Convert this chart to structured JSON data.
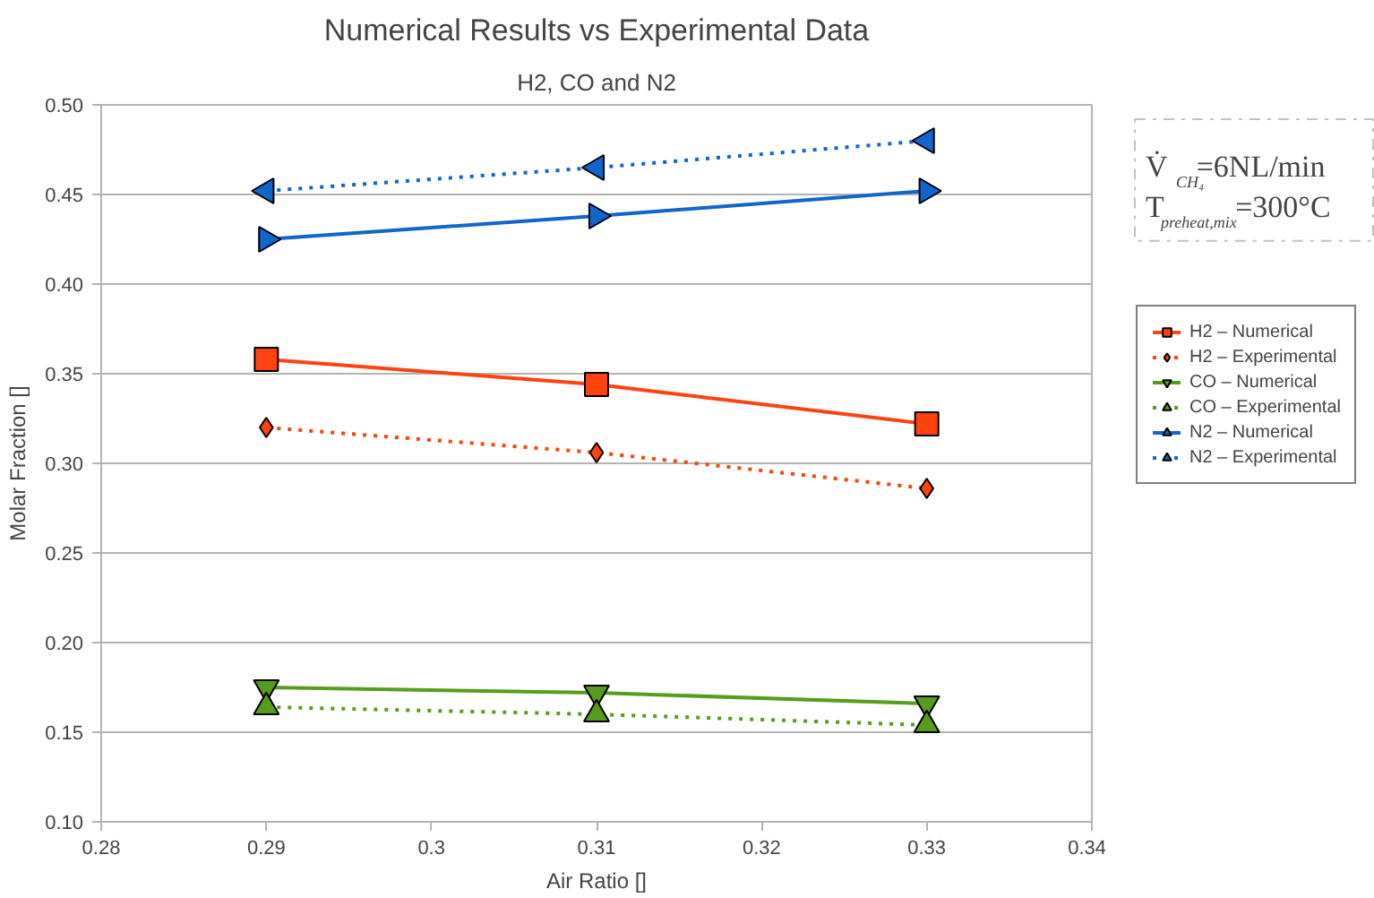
{
  "chart_data": {
    "type": "line",
    "title": "Numerical Results vs Experimental Data",
    "subtitle": "H2, CO and N2",
    "xlabel": "Air Ratio []",
    "ylabel": "Molar Fraction []",
    "x": [
      0.29,
      0.31,
      0.33
    ],
    "series": [
      {
        "name": "H2 – Numerical",
        "color": "#ff420e",
        "values": [
          0.358,
          0.344,
          0.322
        ],
        "marker": "square",
        "line_style": "solid"
      },
      {
        "name": "H2 – Experimental",
        "color": "#ff420e",
        "values": [
          0.32,
          0.306,
          0.286
        ],
        "marker": "diamond",
        "line_style": "dotted"
      },
      {
        "name": "CO – Numerical",
        "color": "#579d1c",
        "values": [
          0.175,
          0.172,
          0.166
        ],
        "marker": "triangle-down",
        "line_style": "solid"
      },
      {
        "name": "CO – Experimental",
        "color": "#579d1c",
        "values": [
          0.164,
          0.16,
          0.154
        ],
        "marker": "triangle",
        "line_style": "dotted"
      },
      {
        "name": "N2 – Numerical",
        "color": "#1166cc",
        "values": [
          0.425,
          0.438,
          0.452
        ],
        "marker": "triangle-right",
        "line_style": "solid"
      },
      {
        "name": "N2 – Experimental",
        "color": "#1166cc",
        "values": [
          0.452,
          0.465,
          0.48
        ],
        "marker": "triangle-left",
        "line_style": "dotted"
      }
    ],
    "xlim": [
      0.28,
      0.34
    ],
    "xticks": [
      0.28,
      0.29,
      {
        "value": 0.3,
        "label": "0.3"
      },
      0.31,
      0.32,
      0.33,
      0.34
    ],
    "ylim": [
      0.1,
      0.5
    ],
    "yticks": [
      {
        "value": 0.1,
        "label": "0.10"
      },
      0.15,
      {
        "value": 0.2,
        "label": "0.20"
      },
      0.25,
      {
        "value": 0.3,
        "label": "0.30"
      },
      0.35,
      {
        "value": 0.4,
        "label": "0.40"
      },
      0.45,
      {
        "value": 0.5,
        "label": "0.50"
      }
    ],
    "grid": "y",
    "legend": "right",
    "annotations": [
      "V̇$_{CH₄}$=6NL/min",
      "T$_{preheat,mix}$=300°C"
    ]
  }
}
